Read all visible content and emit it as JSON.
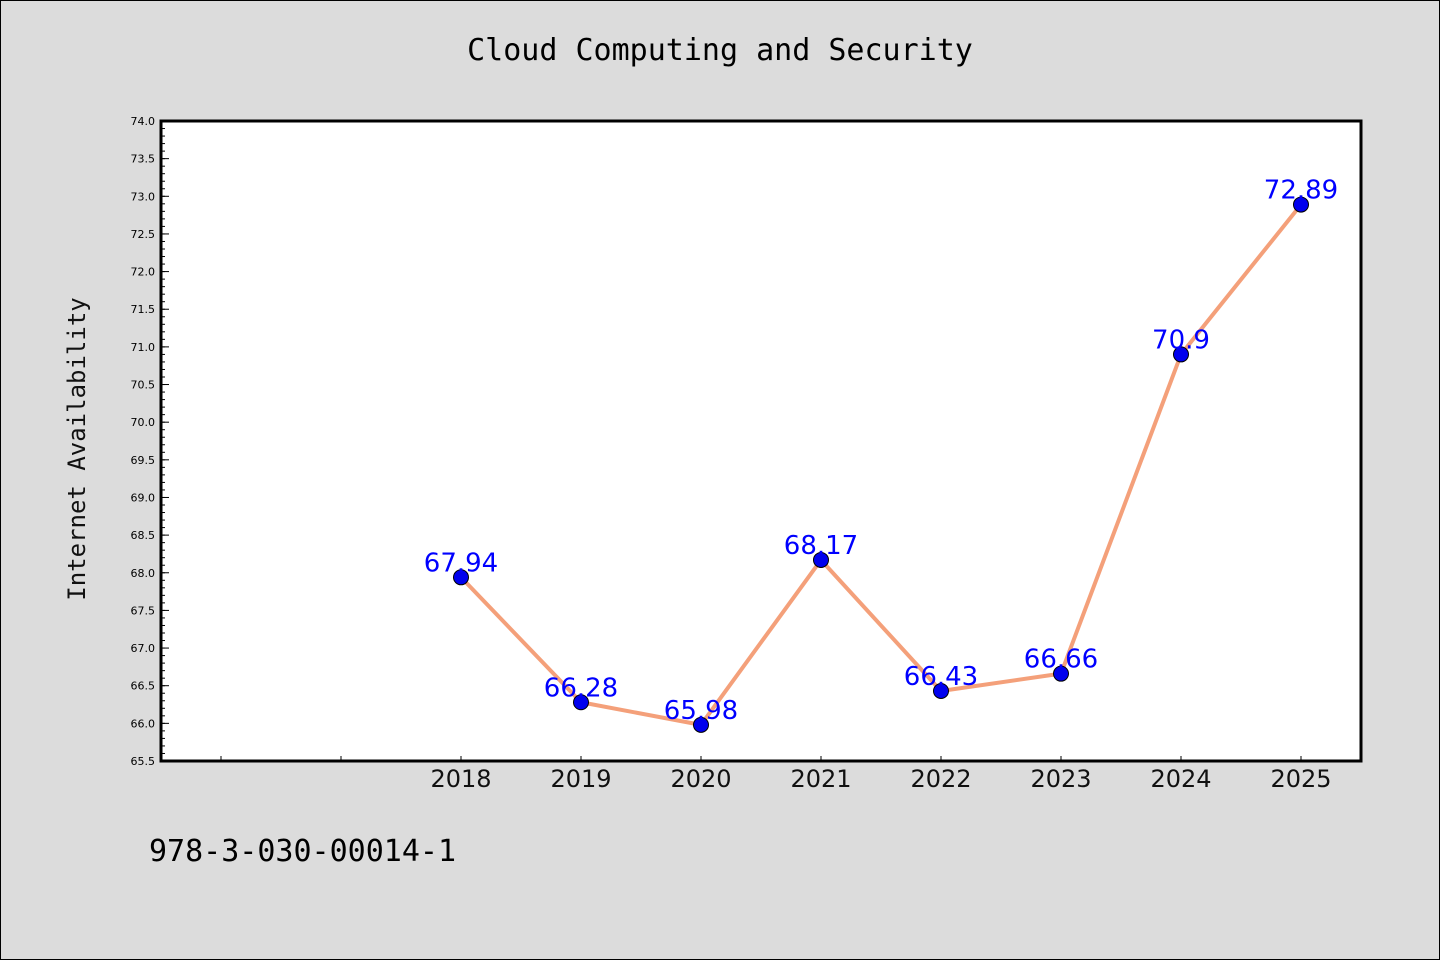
{
  "chart_data": {
    "type": "line",
    "title": "Cloud Computing and Security",
    "xlabel": "",
    "ylabel": "Internet Availability",
    "categories": [
      "2018",
      "2019",
      "2020",
      "2021",
      "2022",
      "2023",
      "2024",
      "2025"
    ],
    "series": [
      {
        "values": [
          67.94,
          66.28,
          65.98,
          68.17,
          66.43,
          66.66,
          70.9,
          72.89
        ],
        "data_labels": [
          "67.94",
          "66.28",
          "65.98",
          "68.17",
          "66.43",
          "66.66",
          "70.9",
          "72.89"
        ]
      }
    ],
    "ylim": [
      65.5,
      74.0
    ],
    "yticks": [
      "65.5",
      "66.0",
      "66.5",
      "67.0",
      "67.5",
      "68.0",
      "68.5",
      "69.0",
      "69.5",
      "70.0",
      "70.5",
      "71.0",
      "71.5",
      "72.0",
      "72.5",
      "73.0",
      "73.5",
      "74.0"
    ],
    "grid": false,
    "colors": {
      "line": "#f4a07a",
      "marker": "#0000ee",
      "label": "#0000ff",
      "background": "#dcdcdc",
      "plot_background": "#ffffff"
    }
  },
  "footer": {
    "id_text": "978-3-030-00014-1"
  }
}
